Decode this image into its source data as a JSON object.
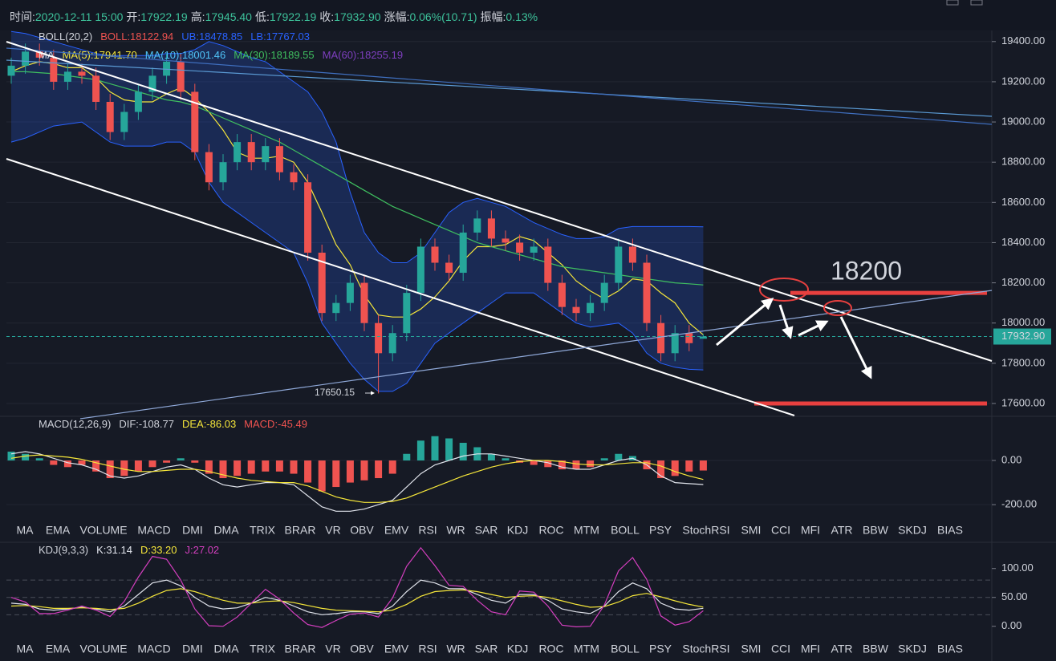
{
  "header": {
    "value_color": "#3dc29b",
    "items": [
      {
        "label": "时间:",
        "value": "2020-12-11 15:00"
      },
      {
        "label": "开:",
        "value": "17922.19"
      },
      {
        "label": "高:",
        "value": "17945.40"
      },
      {
        "label": "低:",
        "value": "17922.19"
      },
      {
        "label": "收:",
        "value": "17932.90"
      },
      {
        "label": "涨幅:",
        "value": "0.06%(10.71)"
      },
      {
        "label": "振幅:",
        "value": "0.13%"
      }
    ]
  },
  "tabs": [
    "MA",
    "EMA",
    "VOLUME",
    "MACD",
    "DMI",
    "DMA",
    "TRIX",
    "BRAR",
    "VR",
    "OBV",
    "EMV",
    "RSI",
    "WR",
    "SAR",
    "KDJ",
    "ROC",
    "MTM",
    "BOLL",
    "PSY",
    "StochRSI",
    "SMI",
    "CCI",
    "MFI",
    "ATR",
    "BBW",
    "SKDJ",
    "BIAS"
  ],
  "tab_color": "#d1d4dc",
  "active_tab_color": "#2962ff",
  "chart_data": [
    {
      "type": "candlestick",
      "up_color": "#26a69a",
      "down_color": "#ef5350",
      "band_color": "#2962ff",
      "legend_rows": [
        [
          {
            "text": "BOLL(20,2)",
            "color": "#d1d4dc"
          },
          {
            "text": "BOLL:18122.94",
            "color": "#ef5350"
          },
          {
            "text": "UB:18478.85",
            "color": "#2962ff"
          },
          {
            "text": "LB:17767.03",
            "color": "#2962ff"
          }
        ],
        [
          {
            "text": "MA",
            "color": "#d1d4dc"
          },
          {
            "text": "MA(5):17941.70",
            "color": "#f5e63a"
          },
          {
            "text": "MA(10):18001.46",
            "color": "#4fc3f7"
          },
          {
            "text": "MA(30):18189.55",
            "color": "#3fbf5f"
          },
          {
            "text": "MA(60):18255.19",
            "color": "#7e3fbf"
          }
        ]
      ],
      "open": [
        19230,
        19280,
        19350,
        19320,
        19200,
        19250,
        19230,
        19100,
        18950,
        19050,
        19150,
        19230,
        19300,
        19150,
        18850,
        18700,
        18800,
        18900,
        18800,
        18880,
        18750,
        18700,
        18350,
        18050,
        18100,
        18200,
        18000,
        17850,
        17950,
        18150,
        18380,
        18300,
        18250,
        18450,
        18520,
        18420,
        18400,
        18350,
        18380,
        18200,
        18080,
        18050,
        18100,
        18200,
        18380,
        18300,
        18000,
        17850,
        17950,
        17922.19
      ],
      "high": [
        19320,
        19390,
        19390,
        19360,
        19290,
        19290,
        19270,
        19140,
        19090,
        19190,
        19270,
        19340,
        19340,
        19190,
        18890,
        18840,
        18940,
        18940,
        18920,
        18920,
        18790,
        18740,
        18390,
        18140,
        18240,
        18240,
        18040,
        17990,
        18190,
        18420,
        18420,
        18340,
        18490,
        18560,
        18560,
        18460,
        18440,
        18420,
        18420,
        18240,
        18120,
        18140,
        18240,
        18420,
        18420,
        18340,
        18040,
        17990,
        17990,
        17945.4
      ],
      "low": [
        19190,
        19240,
        19280,
        19160,
        19160,
        19190,
        19060,
        18910,
        18910,
        19010,
        19110,
        19190,
        19110,
        18810,
        18660,
        18660,
        18760,
        18760,
        18760,
        18710,
        18660,
        18310,
        18010,
        18010,
        18060,
        17960,
        17650.15,
        17810,
        17910,
        18110,
        18260,
        18210,
        18210,
        18410,
        18380,
        18360,
        18310,
        18310,
        18160,
        18040,
        18010,
        18010,
        18060,
        18160,
        18260,
        17960,
        17810,
        17810,
        17860,
        17922.19
      ],
      "close": [
        19280,
        19350,
        19320,
        19200,
        19250,
        19230,
        19100,
        18950,
        19050,
        19150,
        19230,
        19300,
        19150,
        18850,
        18700,
        18800,
        18900,
        18800,
        18880,
        18750,
        18700,
        18350,
        18050,
        18100,
        18200,
        18000,
        17850,
        17950,
        18150,
        18380,
        18300,
        18250,
        18450,
        18520,
        18420,
        18400,
        18350,
        18380,
        18200,
        18080,
        18050,
        18100,
        18200,
        18380,
        18300,
        18000,
        17850,
        17950,
        17900,
        17932.9
      ],
      "bands": [
        {
          "color": "#2962ff",
          "values": [
            19450,
            19440,
            19420,
            19400,
            19380,
            19360,
            19340,
            19330,
            19330,
            19330,
            19330,
            19340,
            19340,
            19360,
            19400,
            19380,
            19350,
            19320,
            19300,
            19250,
            19200,
            19150,
            19050,
            18900,
            18650,
            18450,
            18350,
            18300,
            18300,
            18350,
            18450,
            18550,
            18600,
            18620,
            18600,
            18580,
            18540,
            18500,
            18470,
            18440,
            18420,
            18420,
            18430,
            18470,
            18480,
            18480,
            18480,
            18480,
            18480,
            18478.85
          ]
        },
        {
          "color": "#2962ff",
          "values": [
            18900,
            18920,
            18950,
            18980,
            18990,
            19000,
            18950,
            18900,
            18880,
            18880,
            18880,
            18900,
            18900,
            18850,
            18700,
            18600,
            18550,
            18500,
            18450,
            18400,
            18350,
            18200,
            18000,
            17900,
            17800,
            17720,
            17660,
            17660,
            17700,
            17800,
            17900,
            17950,
            18000,
            18050,
            18100,
            18150,
            18150,
            18150,
            18100,
            18050,
            18000,
            17980,
            17990,
            18000,
            17950,
            17850,
            17800,
            17780,
            17770,
            17767.03
          ]
        }
      ],
      "overlays": [
        {
          "color": "#f5e63a",
          "values": [
            19250,
            19280,
            19300,
            19290,
            19270,
            19270,
            19220,
            19150,
            19110,
            19100,
            19100,
            19140,
            19170,
            19120,
            19050,
            18960,
            18850,
            18820,
            18820,
            18830,
            18800,
            18700,
            18550,
            18390,
            18290,
            18140,
            18040,
            18030,
            18030,
            18070,
            18130,
            18210,
            18310,
            18380,
            18380,
            18390,
            18430,
            18410,
            18350,
            18290,
            18210,
            18160,
            18120,
            18160,
            18220,
            18210,
            18150,
            18100,
            18000,
            17941.7
          ]
        },
        {
          "color": "#3fbf5f",
          "values": [
            19250,
            19250,
            19245,
            19240,
            19230,
            19220,
            19210,
            19190,
            19170,
            19150,
            19130,
            19110,
            19100,
            19080,
            19050,
            19020,
            18990,
            18960,
            18930,
            18900,
            18860,
            18820,
            18780,
            18740,
            18700,
            18660,
            18620,
            18580,
            18550,
            18520,
            18490,
            18460,
            18430,
            18400,
            18380,
            18360,
            18340,
            18320,
            18300,
            18280,
            18270,
            18260,
            18250,
            18240,
            18230,
            18220,
            18210,
            18200,
            18195,
            18189.55
          ]
        }
      ],
      "ylim": [
        17544,
        19467
      ],
      "yticks": [
        {
          "value": 17600,
          "label": "17600.00"
        },
        {
          "value": 17800,
          "label": "17800.00"
        },
        {
          "value": 18000,
          "label": "18000.00"
        },
        {
          "value": 18200,
          "label": "18200.00"
        },
        {
          "value": 18400,
          "label": "18400.00"
        },
        {
          "value": 18600,
          "label": "18600.00"
        },
        {
          "value": 18800,
          "label": "18800.00"
        },
        {
          "value": 19000,
          "label": "19000.00"
        },
        {
          "value": 19200,
          "label": "19200.00"
        },
        {
          "value": 19400,
          "label": "19400.00"
        }
      ],
      "last_price": {
        "value": 17932.9,
        "label": "17932.90"
      },
      "annotation": "18200",
      "annotation_color": "#e8403f",
      "levels": [
        18150,
        17600
      ]
    },
    {
      "type": "macd",
      "title": "MACD(12,26,9)",
      "up_color": "#26a69a",
      "down_color": "#ef5350",
      "legend": [
        {
          "text": "DIF:-108.77",
          "color": "#d1d4dc"
        },
        {
          "text": "DEA:-86.03",
          "color": "#f5e63a"
        },
        {
          "text": "MACD:-45.49",
          "color": "#ef5350"
        }
      ],
      "histogram": [
        40,
        30,
        10,
        -20,
        -30,
        -20,
        -50,
        -80,
        -70,
        -50,
        -30,
        -10,
        10,
        -10,
        -60,
        -80,
        -70,
        -60,
        -50,
        -50,
        -60,
        -100,
        -140,
        -120,
        -100,
        -90,
        -80,
        -60,
        30,
        90,
        110,
        100,
        80,
        60,
        30,
        10,
        -10,
        -20,
        -30,
        -40,
        -40,
        -30,
        10,
        30,
        20,
        -40,
        -80,
        -70,
        -50,
        -45.49
      ],
      "series": [
        {
          "color": "#e0e3eb",
          "values": [
            30,
            40,
            30,
            10,
            -10,
            -20,
            -40,
            -70,
            -80,
            -70,
            -50,
            -30,
            -20,
            -40,
            -80,
            -110,
            -120,
            -110,
            -100,
            -100,
            -110,
            -160,
            -210,
            -230,
            -230,
            -220,
            -200,
            -180,
            -120,
            -60,
            -20,
            0,
            20,
            30,
            30,
            20,
            10,
            0,
            -10,
            -30,
            -40,
            -40,
            -20,
            0,
            10,
            -20,
            -70,
            -100,
            -105,
            -108.77
          ]
        },
        {
          "color": "#f5e63a",
          "values": [
            10,
            20,
            25,
            20,
            15,
            5,
            -10,
            -25,
            -40,
            -50,
            -50,
            -45,
            -40,
            -40,
            -50,
            -65,
            -80,
            -90,
            -95,
            -100,
            -100,
            -115,
            -140,
            -165,
            -180,
            -190,
            -190,
            -185,
            -170,
            -145,
            -120,
            -95,
            -70,
            -50,
            -30,
            -15,
            -5,
            0,
            0,
            -5,
            -15,
            -20,
            -20,
            -15,
            -10,
            -10,
            -25,
            -50,
            -70,
            -86.03
          ]
        }
      ],
      "ylim": [
        -276,
        189
      ],
      "yticks": [
        {
          "value": -200,
          "label": "-200.00"
        },
        {
          "value": 0,
          "label": "0.00"
        }
      ],
      "active_tab": 3
    },
    {
      "type": "kdj",
      "title": "KDJ(9,3,3)",
      "legend": [
        {
          "text": "K:31.14",
          "color": "#e0e3eb"
        },
        {
          "text": "D:33.20",
          "color": "#f5e63a"
        },
        {
          "text": "J:27.02",
          "color": "#d43fbf"
        }
      ],
      "series": [
        {
          "color": "#e0e3eb",
          "values": [
            40,
            38,
            30,
            28,
            30,
            33,
            30,
            25,
            35,
            55,
            75,
            80,
            70,
            50,
            35,
            30,
            32,
            40,
            50,
            45,
            35,
            25,
            20,
            22,
            25,
            25,
            22,
            35,
            60,
            80,
            75,
            65,
            65,
            55,
            45,
            40,
            55,
            55,
            45,
            30,
            25,
            22,
            35,
            60,
            75,
            65,
            40,
            30,
            28,
            31.14
          ]
        },
        {
          "color": "#f5e63a",
          "values": [
            35,
            36,
            34,
            31,
            31,
            32,
            31,
            29,
            31,
            40,
            52,
            62,
            65,
            60,
            52,
            45,
            40,
            40,
            43,
            44,
            41,
            36,
            31,
            28,
            27,
            26,
            25,
            28,
            38,
            52,
            60,
            62,
            63,
            60,
            55,
            50,
            52,
            53,
            50,
            44,
            38,
            33,
            34,
            42,
            53,
            57,
            51,
            44,
            38,
            33.2
          ]
        },
        {
          "color": "#d43fbf",
          "values": [
            50,
            42,
            22,
            22,
            28,
            35,
            28,
            17,
            43,
            85,
            121,
            116,
            80,
            30,
            1,
            0,
            16,
            40,
            64,
            47,
            23,
            3,
            -2,
            10,
            21,
            23,
            16,
            49,
            104,
            136,
            105,
            71,
            69,
            45,
            25,
            20,
            61,
            59,
            35,
            2,
            -1,
            0,
            37,
            96,
            119,
            81,
            18,
            2,
            8,
            27.02
          ]
        }
      ],
      "guides": [
        80,
        50,
        20
      ],
      "ylim": [
        -24,
        126
      ],
      "yticks": [
        {
          "value": 0,
          "label": "0.00"
        },
        {
          "value": 50,
          "label": "50.00"
        },
        {
          "value": 100,
          "label": "100.00"
        }
      ],
      "active_tab": 14
    }
  ]
}
